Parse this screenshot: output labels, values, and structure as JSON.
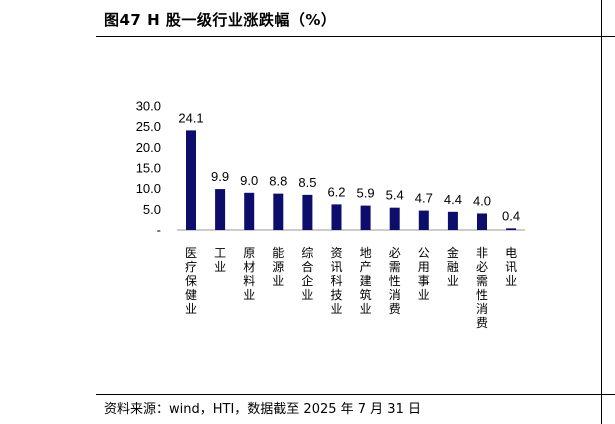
{
  "title": "图47 H 股一级行业涨跌幅（%）",
  "source": "资料来源：wind，HTI，数据截至 2025 年 7 月 31 日",
  "chart_data": {
    "type": "bar",
    "title": "",
    "xlabel": "",
    "ylabel": "",
    "categories": [
      "医疗保健业",
      "工业",
      "原材料业",
      "能源业",
      "综合企业",
      "资讯科技业",
      "地产建筑业",
      "必需性消费",
      "公用事业",
      "金融业",
      "非必需性消费",
      "电讯业"
    ],
    "values": [
      24.1,
      9.9,
      9.0,
      8.8,
      8.5,
      6.2,
      5.9,
      5.4,
      4.7,
      4.4,
      4.0,
      0.4
    ],
    "value_labels": [
      "24.1",
      "9.9",
      "9.0",
      "8.8",
      "8.5",
      "6.2",
      "5.9",
      "5.4",
      "4.7",
      "4.4",
      "4.0",
      "0.4"
    ],
    "ylim": [
      0,
      30
    ],
    "yticks": [
      "-",
      "5.0",
      "10.0",
      "15.0",
      "20.0",
      "25.0",
      "30.0"
    ],
    "grid": false,
    "bar_color": "#0d0d6b"
  }
}
